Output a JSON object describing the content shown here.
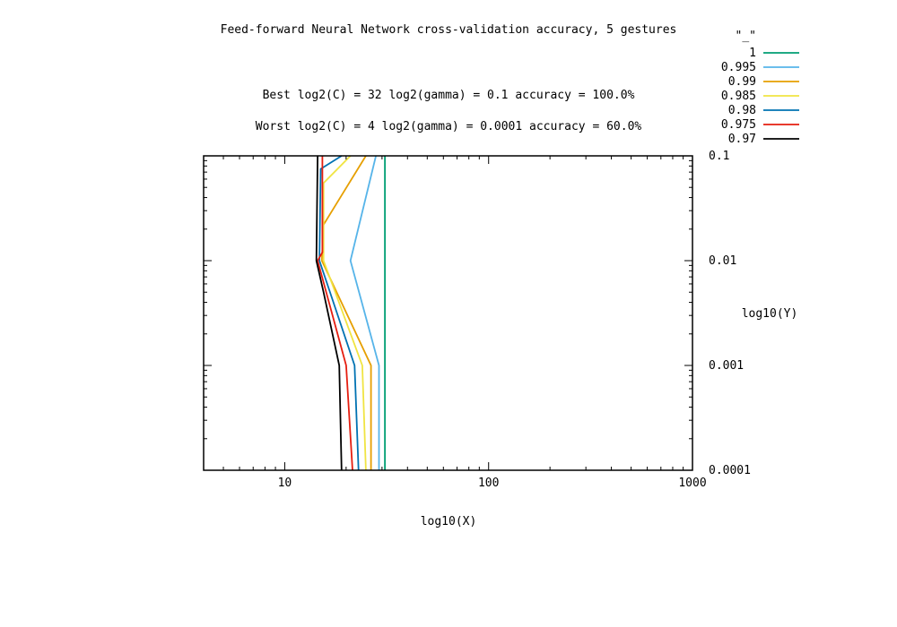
{
  "chart_data": {
    "type": "line",
    "title": "Feed-forward Neural Network cross-validation accuracy, 5 gestures",
    "subtitle_best": "Best log2(C) = 32  log2(gamma) = 0.1  accuracy = 100.0%",
    "subtitle_worst": "Worst log2(C) = 4  log2(gamma) = 0.0001   accuracy = 60.0%",
    "xlabel": "log10(X)",
    "ylabel": "log10(Y)",
    "x_scale": "log",
    "y_scale": "log",
    "xlim": [
      4,
      1000
    ],
    "ylim": [
      0.0001,
      0.1
    ],
    "x_ticks": [
      {
        "value": 10,
        "label": "10"
      },
      {
        "value": 100,
        "label": "100"
      },
      {
        "value": 1000,
        "label": "1000"
      }
    ],
    "y_ticks": [
      {
        "value": 0.1,
        "label": "0.1"
      },
      {
        "value": 0.01,
        "label": "0.01"
      },
      {
        "value": 0.001,
        "label": "0.001"
      },
      {
        "value": 0.0001,
        "label": "0.0001"
      }
    ],
    "y_tick_side": "right",
    "legend_title": "\"_\"",
    "legend_position": "top-right",
    "grid": false,
    "series": [
      {
        "name": "1",
        "color": "#009e73",
        "points": [
          [
            31,
            0.1
          ],
          [
            31,
            0.0001
          ]
        ]
      },
      {
        "name": "0.995",
        "color": "#56b4e9",
        "points": [
          [
            28,
            0.1
          ],
          [
            21,
            0.01
          ],
          [
            29,
            0.001
          ],
          [
            29,
            0.0001
          ]
        ]
      },
      {
        "name": "0.99",
        "color": "#e69f00",
        "points": [
          [
            25,
            0.1
          ],
          [
            15.5,
            0.022
          ],
          [
            15.2,
            0.01
          ],
          [
            26.5,
            0.001
          ],
          [
            26.5,
            0.0001
          ]
        ]
      },
      {
        "name": "0.985",
        "color": "#f0e442",
        "points": [
          [
            21,
            0.1
          ],
          [
            15.5,
            0.055
          ],
          [
            15.5,
            0.01
          ],
          [
            24,
            0.001
          ],
          [
            25,
            0.0001
          ]
        ]
      },
      {
        "name": "0.98",
        "color": "#0072b2",
        "points": [
          [
            19,
            0.1
          ],
          [
            15,
            0.075
          ],
          [
            14.8,
            0.01
          ],
          [
            22,
            0.001
          ],
          [
            23,
            0.0001
          ]
        ]
      },
      {
        "name": "0.975",
        "color": "#e51e10",
        "points": [
          [
            15.3,
            0.1
          ],
          [
            15.3,
            0.012
          ],
          [
            14.5,
            0.01
          ],
          [
            20,
            0.001
          ],
          [
            21.5,
            0.0001
          ]
        ]
      },
      {
        "name": "0.97",
        "color": "#000000",
        "points": [
          [
            14.5,
            0.1
          ],
          [
            14.3,
            0.01
          ],
          [
            15.5,
            0.005
          ],
          [
            18.5,
            0.001
          ],
          [
            19,
            0.0001
          ]
        ]
      }
    ]
  }
}
